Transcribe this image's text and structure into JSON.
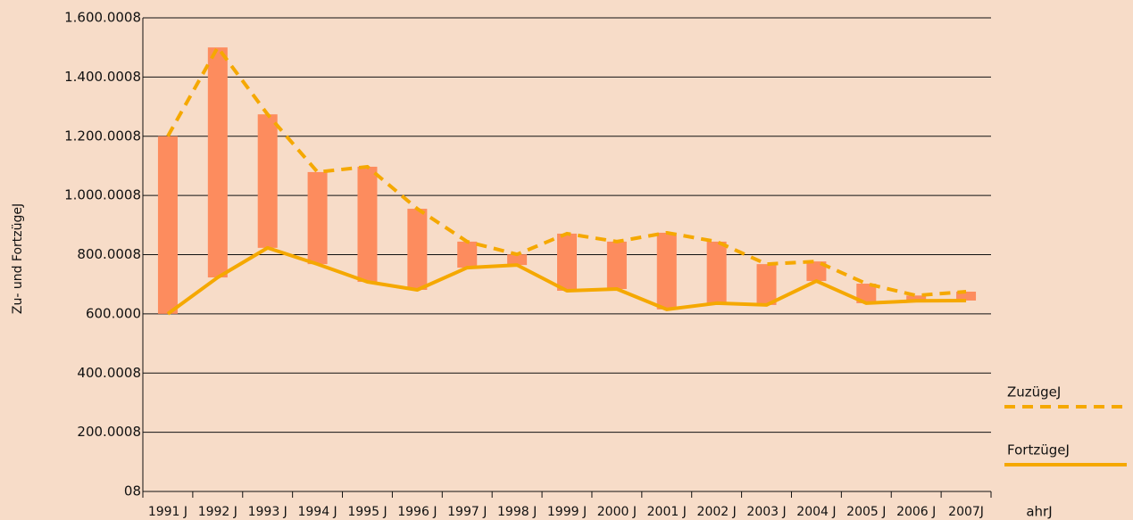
{
  "chart_data": {
    "type": "line",
    "y_label": "Zu- und FortzügeJ",
    "x_label": "ahrJ",
    "categories": [
      "1991 J",
      "1992 J",
      "1993 J",
      "1994 J",
      "1995 J",
      "1996 J",
      "1997 J",
      "1998 J",
      "1999 J",
      "2000 J",
      "2001 J",
      "2002 J",
      "2003 J",
      "2004 J",
      "2005 J",
      "2006 J",
      "2007J"
    ],
    "series": [
      {
        "name": "ZuzügeJ",
        "color": "#f5a800",
        "dash": true,
        "values": [
          1200000,
          1500000,
          1274000,
          1079000,
          1097000,
          955000,
          844000,
          801000,
          871000,
          844000,
          874000,
          844000,
          768000,
          777000,
          702000,
          662000,
          675000
        ]
      },
      {
        "name": "FortzügeJ",
        "color": "#f5a800",
        "dash": false,
        "values": [
          600000,
          723000,
          823000,
          768000,
          708000,
          681000,
          756000,
          765000,
          678000,
          684000,
          615000,
          636000,
          630000,
          711000,
          636000,
          644000,
          645000
        ]
      }
    ],
    "bar_color": "#fd8c5e",
    "ylim": [
      0,
      1600000
    ],
    "yticks": [
      {
        "value": 0,
        "label": "08"
      },
      {
        "value": 200000,
        "label": "200.0008"
      },
      {
        "value": 400000,
        "label": "400.0008"
      },
      {
        "value": 600000,
        "label": "600.000"
      },
      {
        "value": 800000,
        "label": "800.0008"
      },
      {
        "value": 1000000,
        "label": "1.000.0008"
      },
      {
        "value": 1200000,
        "label": "1.200.0008"
      },
      {
        "value": 1400000,
        "label": "1.400.0008"
      },
      {
        "value": 1600000,
        "label": "1.600.0008"
      }
    ],
    "grid": true,
    "legend": "right"
  }
}
